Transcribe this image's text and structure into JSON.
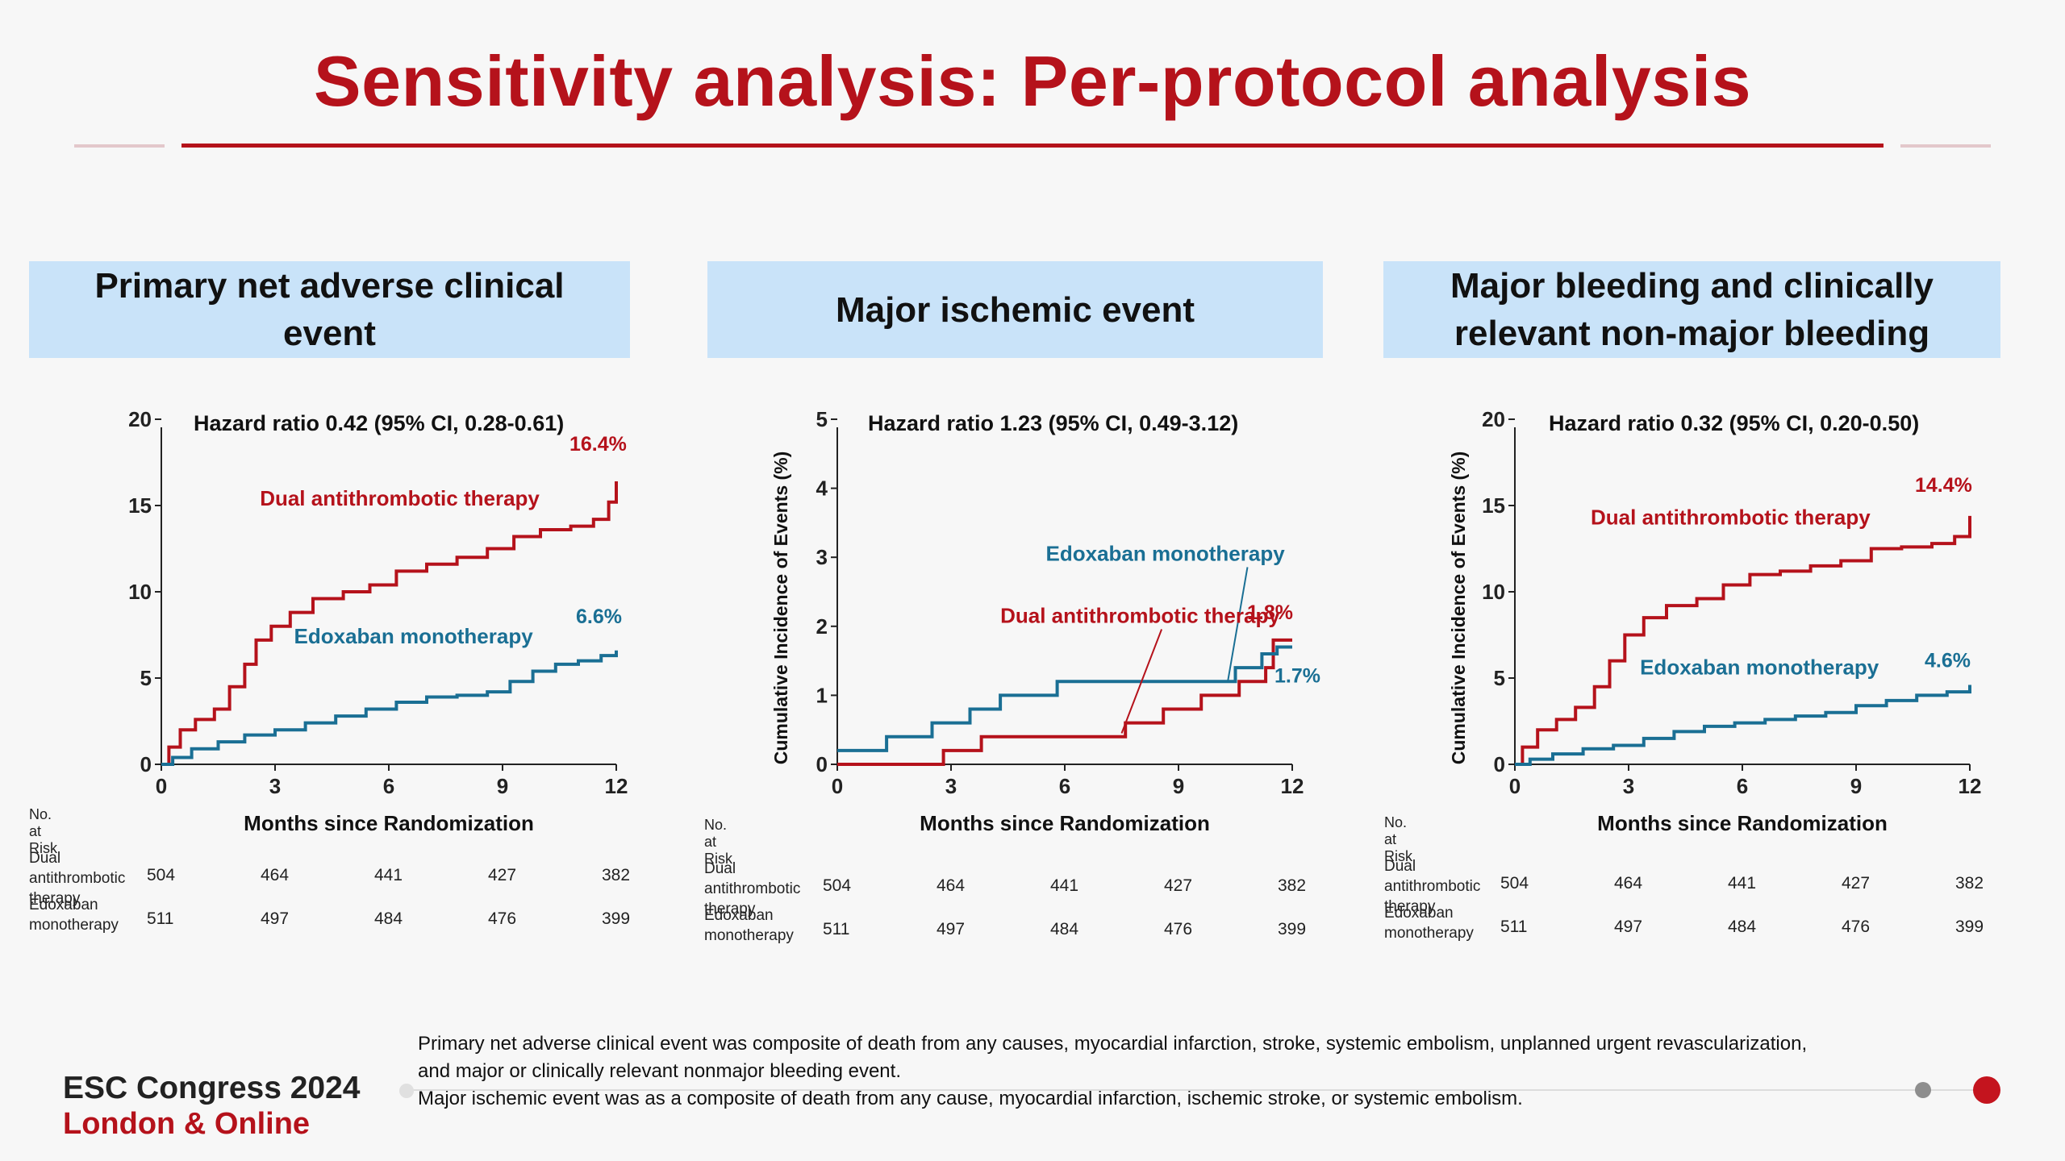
{
  "slide": {
    "title": "Sensitivity analysis: Per-protocol analysis",
    "footnote": [
      "Primary net adverse clinical event was composite of death from any causes, myocardial infarction, stroke, systemic embolism, unplanned urgent revascularization,",
      "and major or clinically relevant nonmajor bleeding event.",
      "Major ischemic event was as a composite of death from any cause, myocardial infarction, ischemic stroke, or systemic embolism."
    ],
    "congress": "ESC Congress 2024",
    "location": "London & Online"
  },
  "colors": {
    "dual": "#b5121b",
    "edox": "#1a6f94",
    "accent": "#b5121b",
    "header_bg": "#c9e3f9"
  },
  "chart_data": [
    {
      "type": "line",
      "header": "Primary net adverse clinical\nevent",
      "hazard_ratio": "Hazard ratio 0.42 (95% CI, 0.28-0.61)",
      "xlabel": "Months since Randomization",
      "ylabel": "",
      "xlim": [
        0,
        12
      ],
      "ylim": [
        0,
        20
      ],
      "xticks": [
        0,
        3,
        6,
        9,
        12
      ],
      "yticks": [
        0,
        5,
        10,
        15,
        20
      ],
      "series": [
        {
          "name": "Dual antithrombotic therapy",
          "color": "#b5121b",
          "end_label": "16.4%",
          "x": [
            0,
            0.2,
            0.5,
            0.9,
            1.4,
            1.8,
            2.2,
            2.5,
            2.9,
            3.4,
            4.0,
            4.8,
            5.5,
            6.2,
            7.0,
            7.8,
            8.6,
            9.3,
            10.0,
            10.8,
            11.4,
            11.8,
            12.0
          ],
          "y": [
            0,
            1.0,
            2.0,
            2.6,
            3.2,
            4.5,
            5.8,
            7.2,
            8.0,
            8.8,
            9.6,
            10.0,
            10.4,
            11.2,
            11.6,
            12.0,
            12.5,
            13.2,
            13.6,
            13.8,
            14.2,
            15.2,
            16.4
          ]
        },
        {
          "name": "Edoxaban monotherapy",
          "color": "#1a6f94",
          "end_label": "6.6%",
          "x": [
            0,
            0.3,
            0.8,
            1.5,
            2.2,
            3.0,
            3.8,
            4.6,
            5.4,
            6.2,
            7.0,
            7.8,
            8.6,
            9.2,
            9.8,
            10.4,
            11.0,
            11.6,
            12.0
          ],
          "y": [
            0,
            0.4,
            0.9,
            1.3,
            1.7,
            2.0,
            2.4,
            2.8,
            3.2,
            3.6,
            3.9,
            4.0,
            4.2,
            4.8,
            5.4,
            5.8,
            6.0,
            6.3,
            6.6
          ]
        }
      ],
      "labels": [
        {
          "series": "Dual antithrombotic therapy",
          "text": "Dual antithrombotic therapy",
          "x": 2.6,
          "y": 15
        },
        {
          "series": "Edoxaban monotherapy",
          "text": "Edoxaban monotherapy",
          "x": 3.5,
          "y": 7.0
        }
      ],
      "risk_table": {
        "title": "No. at Risk",
        "rows": [
          {
            "label": "Dual\nantithrombotic\ntherapy",
            "values": [
              "504",
              "464",
              "441",
              "427",
              "382"
            ]
          },
          {
            "label": "Edoxaban\nmonotherapy",
            "values": [
              "511",
              "497",
              "484",
              "476",
              "399"
            ]
          }
        ]
      }
    },
    {
      "type": "line",
      "header": "Major ischemic event",
      "hazard_ratio": "Hazard ratio 1.23 (95% CI, 0.49-3.12)",
      "xlabel": "Months since Randomization",
      "ylabel": "Cumulative Incidence of Events (%)",
      "xlim": [
        0,
        12
      ],
      "ylim": [
        0,
        5
      ],
      "xticks": [
        0,
        3,
        6,
        9,
        12
      ],
      "yticks": [
        0,
        1,
        2,
        3,
        4,
        5
      ],
      "series": [
        {
          "name": "Dual antithrombotic therapy",
          "color": "#b5121b",
          "end_label": "1.8%",
          "x": [
            0,
            2.8,
            3.8,
            7.6,
            8.6,
            9.6,
            10.6,
            11.3,
            11.5,
            12.0
          ],
          "y": [
            0,
            0.2,
            0.4,
            0.6,
            0.8,
            1.0,
            1.2,
            1.4,
            1.8,
            1.8
          ]
        },
        {
          "name": "Edoxaban monotherapy",
          "color": "#1a6f94",
          "end_label": "1.7%",
          "x": [
            0,
            1.3,
            2.5,
            3.5,
            4.3,
            5.8,
            10.5,
            11.2,
            11.6,
            12.0
          ],
          "y": [
            0.2,
            0.4,
            0.6,
            0.8,
            1.0,
            1.2,
            1.4,
            1.6,
            1.7,
            1.7
          ]
        }
      ],
      "labels": [
        {
          "series": "Edoxaban monotherapy",
          "text": "Edoxaban monotherapy",
          "x": 5.5,
          "y": 2.95,
          "to_x": 10.3,
          "to_y": 1.2
        },
        {
          "series": "Dual antithrombotic therapy",
          "text": "Dual antithrombotic therapy",
          "x": 4.3,
          "y": 2.05,
          "to_x": 7.5,
          "to_y": 0.45
        }
      ],
      "risk_table": {
        "title": "No. at Risk",
        "rows": [
          {
            "label": "Dual\nantithrombotic\ntherapy",
            "values": [
              "504",
              "464",
              "441",
              "427",
              "382"
            ]
          },
          {
            "label": "Edoxaban\nmonotherapy",
            "values": [
              "511",
              "497",
              "484",
              "476",
              "399"
            ]
          }
        ]
      }
    },
    {
      "type": "line",
      "header": "Major bleeding and clinically\nrelevant non-major bleeding",
      "hazard_ratio": "Hazard ratio 0.32 (95% CI, 0.20-0.50)",
      "xlabel": "Months since Randomization",
      "ylabel": "Cumulative Incidence of Events (%)",
      "xlim": [
        0,
        12
      ],
      "ylim": [
        0,
        20
      ],
      "xticks": [
        0,
        3,
        6,
        9,
        12
      ],
      "yticks": [
        0,
        5,
        10,
        15,
        20
      ],
      "series": [
        {
          "name": "Dual antithrombotic therapy",
          "color": "#b5121b",
          "end_label": "14.4%",
          "x": [
            0,
            0.2,
            0.6,
            1.1,
            1.6,
            2.1,
            2.5,
            2.9,
            3.4,
            4.0,
            4.8,
            5.5,
            6.2,
            7.0,
            7.8,
            8.6,
            9.4,
            10.2,
            11.0,
            11.6,
            12.0
          ],
          "y": [
            0,
            1.0,
            2.0,
            2.6,
            3.3,
            4.5,
            6.0,
            7.5,
            8.5,
            9.2,
            9.6,
            10.4,
            11.0,
            11.2,
            11.5,
            11.8,
            12.5,
            12.6,
            12.8,
            13.2,
            14.4
          ]
        },
        {
          "name": "Edoxaban monotherapy",
          "color": "#1a6f94",
          "end_label": "4.6%",
          "x": [
            0,
            0.4,
            1.0,
            1.8,
            2.6,
            3.4,
            4.2,
            5.0,
            5.8,
            6.6,
            7.4,
            8.2,
            9.0,
            9.8,
            10.6,
            11.4,
            12.0
          ],
          "y": [
            0,
            0.3,
            0.6,
            0.9,
            1.1,
            1.5,
            1.9,
            2.2,
            2.4,
            2.6,
            2.8,
            3.0,
            3.4,
            3.7,
            4.0,
            4.2,
            4.6
          ]
        }
      ],
      "labels": [
        {
          "series": "Dual antithrombotic therapy",
          "text": "Dual antithrombotic therapy",
          "x": 2.0,
          "y": 13.9
        },
        {
          "series": "Edoxaban monotherapy",
          "text": "Edoxaban monotherapy",
          "x": 3.3,
          "y": 5.2
        }
      ],
      "risk_table": {
        "title": "No. at Risk",
        "rows": [
          {
            "label": "Dual\nantithrombotic\ntherapy",
            "values": [
              "504",
              "464",
              "441",
              "427",
              "382"
            ]
          },
          {
            "label": "Edoxaban\nmonotherapy",
            "values": [
              "511",
              "497",
              "484",
              "476",
              "399"
            ]
          }
        ]
      }
    }
  ]
}
